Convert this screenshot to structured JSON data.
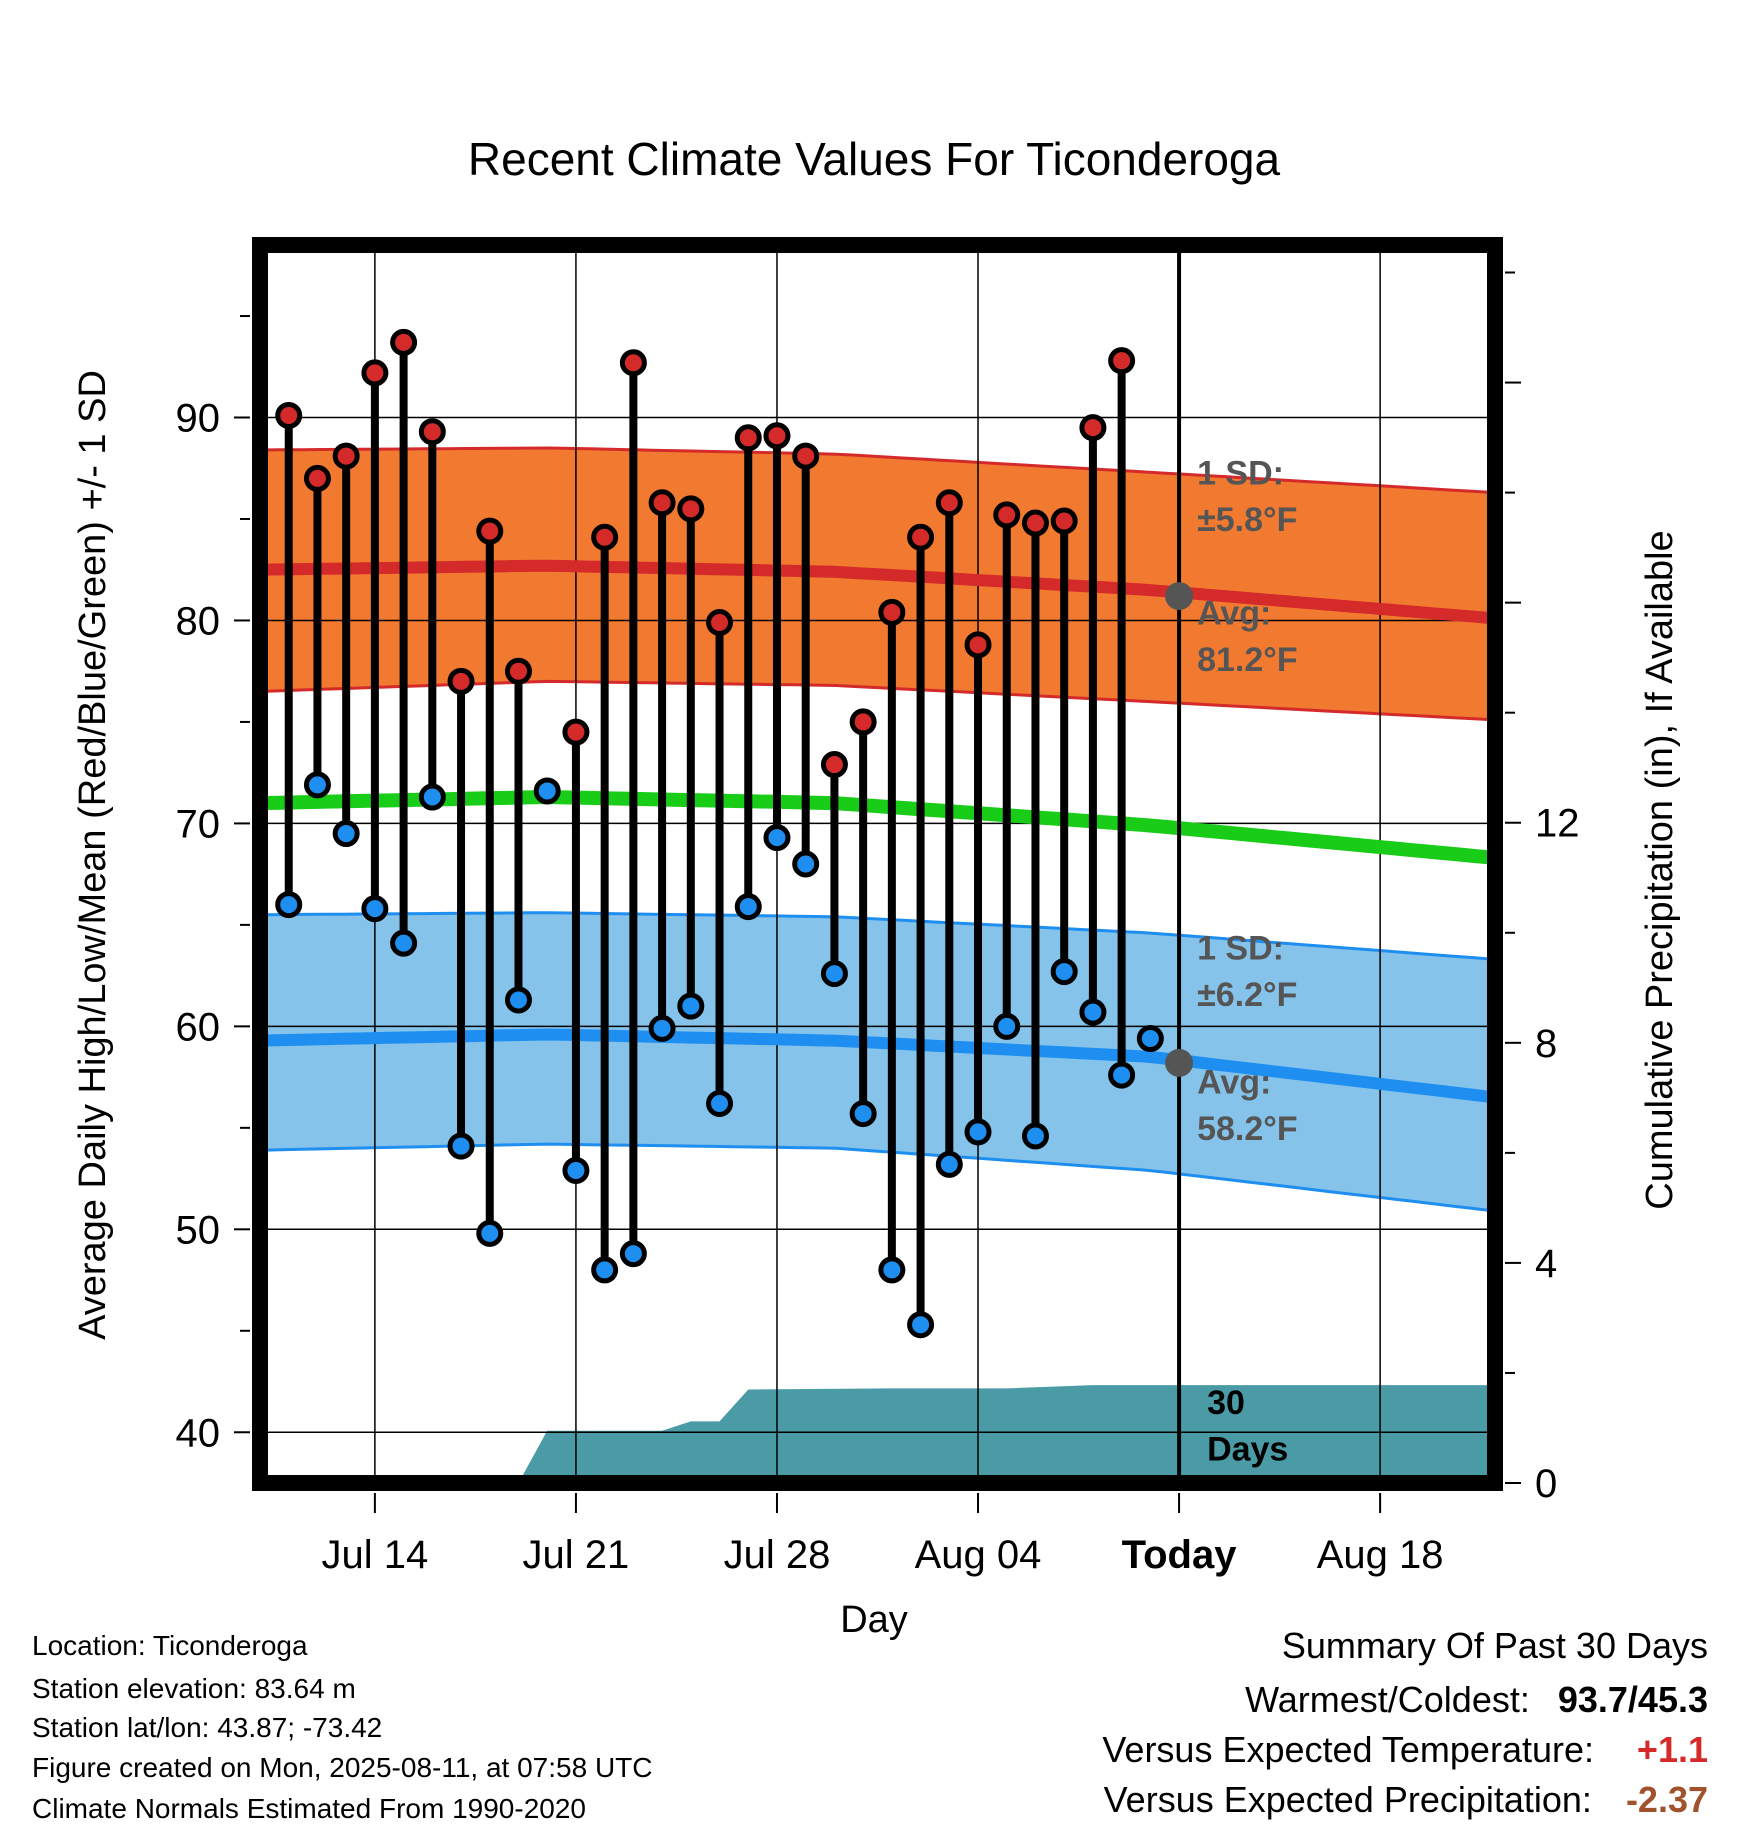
{
  "chart_data": {
    "type": "line",
    "title": "Recent Climate Values For Ticonderoga",
    "xlabel": "Day",
    "ylabel": "Average Daily High/Low/Mean (Red/Blue/Green) +/- 1 SD",
    "y2label": "Cumulative Precipitation (in), If Available",
    "xrange": [
      "2025-07-10",
      "2025-08-22"
    ],
    "ylim": [
      37.5,
      98.5
    ],
    "y2lim": [
      0,
      22.5
    ],
    "xticks": [
      {
        "date": "2025-07-14",
        "label": "Jul 14"
      },
      {
        "date": "2025-07-21",
        "label": "Jul 21"
      },
      {
        "date": "2025-07-28",
        "label": "Jul 28"
      },
      {
        "date": "2025-08-04",
        "label": "Aug 04"
      },
      {
        "date": "2025-08-11",
        "label": "Today"
      },
      {
        "date": "2025-08-18",
        "label": "Aug 18"
      }
    ],
    "yticks": [
      40,
      50,
      60,
      70,
      80,
      90
    ],
    "y2ticks": [
      0,
      4,
      8,
      12
    ],
    "grid": true,
    "today": "2025-08-11",
    "days": [
      "2025-07-11",
      "2025-07-12",
      "2025-07-13",
      "2025-07-14",
      "2025-07-15",
      "2025-07-16",
      "2025-07-17",
      "2025-07-18",
      "2025-07-19",
      "2025-07-20",
      "2025-07-21",
      "2025-07-22",
      "2025-07-23",
      "2025-07-24",
      "2025-07-25",
      "2025-07-26",
      "2025-07-27",
      "2025-07-28",
      "2025-07-29",
      "2025-07-30",
      "2025-07-31",
      "2025-08-01",
      "2025-08-02",
      "2025-08-03",
      "2025-08-04",
      "2025-08-05",
      "2025-08-06",
      "2025-08-07",
      "2025-08-08",
      "2025-08-09",
      "2025-08-10"
    ],
    "series": [
      {
        "name": "High",
        "color": "#d42a2a",
        "values": [
          90.1,
          87.0,
          88.1,
          92.2,
          93.7,
          89.3,
          77.0,
          84.4,
          77.5,
          null,
          74.5,
          84.1,
          92.7,
          85.8,
          85.5,
          79.9,
          89.0,
          89.1,
          88.1,
          72.9,
          75.0,
          80.4,
          84.1,
          85.8,
          78.8,
          85.2,
          84.8,
          84.9,
          89.5,
          92.8,
          null
        ]
      },
      {
        "name": "Low",
        "color": "#1e8ff0",
        "values": [
          66.0,
          71.9,
          69.5,
          65.8,
          64.1,
          71.3,
          54.1,
          49.8,
          61.3,
          71.6,
          52.9,
          48.0,
          48.8,
          59.9,
          61.0,
          56.2,
          65.9,
          69.3,
          68.0,
          62.6,
          55.7,
          48.0,
          45.3,
          53.2,
          54.8,
          60.0,
          54.6,
          62.7,
          60.7,
          57.6,
          59.4
        ]
      }
    ],
    "normals": {
      "dates": [
        "2025-07-10",
        "2025-07-20",
        "2025-07-30",
        "2025-08-10",
        "2025-08-22"
      ],
      "high_avg": [
        82.5,
        82.7,
        82.4,
        81.5,
        80.1
      ],
      "high_upper": [
        88.4,
        88.5,
        88.2,
        87.3,
        86.3
      ],
      "high_lower": [
        76.5,
        77.0,
        76.8,
        76.0,
        75.1
      ],
      "low_avg": [
        59.3,
        59.6,
        59.3,
        58.5,
        56.5
      ],
      "low_upper": [
        65.5,
        65.6,
        65.4,
        64.6,
        63.3
      ],
      "low_lower": [
        53.9,
        54.2,
        54.0,
        52.9,
        50.9
      ],
      "mean_avg": [
        71.0,
        71.3,
        71.0,
        69.9,
        68.3
      ]
    },
    "today_high_avg": 81.2,
    "today_low_avg": 58.2,
    "annotations": {
      "high_sd": [
        "1 SD:",
        "±5.8°F"
      ],
      "high_avg": [
        "Avg:",
        "81.2°F"
      ],
      "low_sd": [
        "1 SD:",
        "±6.2°F"
      ],
      "low_avg": [
        "Avg:",
        "58.2°F"
      ],
      "window": [
        "30",
        "Days"
      ]
    },
    "precip_cumulative": {
      "dates": [
        "2025-07-19",
        "2025-07-20",
        "2025-07-21",
        "2025-07-24",
        "2025-07-25",
        "2025-07-26",
        "2025-07-27",
        "2025-08-01",
        "2025-08-05",
        "2025-08-08",
        "2025-08-22"
      ],
      "values": [
        0,
        0.95,
        0.95,
        0.95,
        1.12,
        1.12,
        1.7,
        1.72,
        1.72,
        1.78,
        1.78
      ]
    },
    "colors": {
      "high_band": "#f27a30",
      "high_line": "#d42a2a",
      "low_band": "#86c3ea",
      "low_line": "#1e8ff0",
      "mean_line": "#18cc18",
      "precip": "#4a9ba5",
      "annotation": "#555555",
      "high_dot": "#d42a2a",
      "low_dot": "#1e8ff0"
    }
  },
  "info": {
    "location": "Location: Ticonderoga",
    "elevation": "Station elevation: 83.64 m",
    "latlon": "Station lat/lon: 43.87; -73.42",
    "created": "Figure created on Mon, 2025-08-11, at 07:58 UTC",
    "normals": "Climate Normals Estimated From 1990-2020"
  },
  "summary": {
    "heading": "Summary Of Past 30 Days",
    "warm_cold_label": "Warmest/Coldest:",
    "warm_cold_value": "93.7/45.3",
    "temp_label": "Versus Expected Temperature:",
    "temp_value": "+1.1",
    "temp_color": "#d42a2a",
    "precip_label": "Versus Expected Precipitation:",
    "precip_value": "-2.37",
    "precip_color": "#a0522d"
  }
}
